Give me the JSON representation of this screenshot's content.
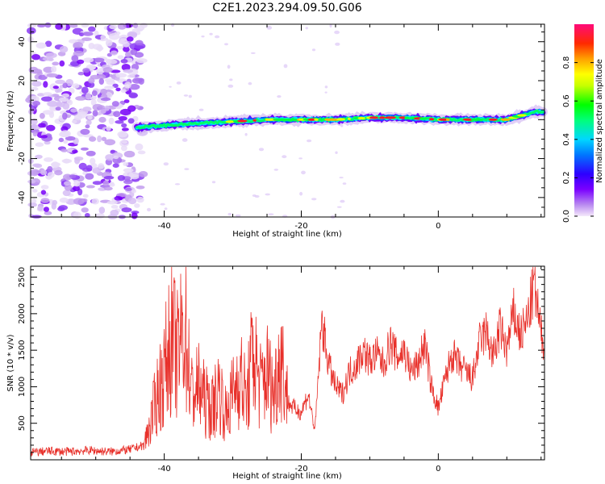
{
  "figure_title": "C2E1.2023.294.09.50.G06",
  "colors": {
    "snr_line": "#e8302a",
    "axes": "#000000",
    "background": "#ffffff"
  },
  "chart_data": [
    {
      "type": "heatmap",
      "xlabel": "Height of straight line (km)",
      "ylabel": "Frequency (Hz)",
      "xlim": [
        -59.5,
        15.5
      ],
      "ylim": [
        -50,
        49
      ],
      "xticks": [
        -40,
        -20,
        0
      ],
      "xtick_labels": [
        "-40",
        "-20",
        "0"
      ],
      "yticks": [
        -40,
        -20,
        0,
        20,
        40
      ],
      "ytick_labels": [
        "-40",
        "-20",
        "0",
        "20",
        "40"
      ],
      "grid": false,
      "colorbar": {
        "label": "Normalized spectral amplitude",
        "range": [
          0,
          1
        ],
        "ticks": [
          0.0,
          0.2,
          0.4,
          0.6,
          0.8
        ],
        "tick_labels": [
          "0.0",
          "0.2",
          "0.4",
          "0.6",
          "0.8"
        ],
        "colormap": "rainbow (violet to magenta-red)"
      },
      "features": {
        "noise_region_x": [
          -59.5,
          -43
        ],
        "signal_band_center_hz": [
          [
            -44,
            -4
          ],
          [
            -40,
            -3
          ],
          [
            -35,
            -2
          ],
          [
            -30,
            -1
          ],
          [
            -25,
            0
          ],
          [
            -20,
            0
          ],
          [
            -15,
            0
          ],
          [
            -10,
            1
          ],
          [
            -5,
            1
          ],
          [
            0,
            0
          ],
          [
            5,
            0
          ],
          [
            10,
            0
          ],
          [
            14,
            4
          ]
        ]
      }
    },
    {
      "type": "line",
      "xlabel": "Height of straight line (km)",
      "ylabel": "SNR (10 * v/v)",
      "xlim": [
        -59.5,
        15.5
      ],
      "ylim": [
        0,
        2650
      ],
      "xticks": [
        -40,
        -20,
        0
      ],
      "xtick_labels": [
        "-40",
        "-20",
        "0"
      ],
      "yticks": [
        500,
        1000,
        1500,
        2000,
        2500
      ],
      "ytick_labels": [
        "500",
        "1000",
        "1500",
        "2000",
        "2500"
      ],
      "grid": false,
      "series": [
        {
          "x": [
            -59.5,
            -57,
            -54,
            -51,
            -48,
            -45,
            -43,
            -42,
            -41,
            -40,
            -39,
            -38,
            -37,
            -36,
            -35,
            -34,
            -33,
            -32,
            -31,
            -30,
            -29,
            -28,
            -27,
            -26,
            -25,
            -24,
            -23,
            -22,
            -21,
            -20,
            -19,
            -18,
            -17,
            -16,
            -15,
            -14,
            -13,
            -12,
            -11,
            -10,
            -9,
            -8,
            -7,
            -6,
            -5,
            -4,
            -3,
            -2,
            -1,
            0,
            1,
            2,
            3,
            4,
            5,
            6,
            7,
            8,
            9,
            10,
            11,
            12,
            13,
            14,
            15,
            15.5
          ],
          "y": [
            100,
            120,
            110,
            130,
            110,
            140,
            200,
            500,
            900,
            1200,
            1700,
            1400,
            1900,
            900,
            1000,
            800,
            700,
            1000,
            600,
            900,
            1200,
            800,
            1500,
            1000,
            1200,
            900,
            1500,
            800,
            700,
            650,
            900,
            400,
            1900,
            1300,
            1000,
            900,
            1200,
            1300,
            1500,
            1350,
            1450,
            1300,
            1600,
            1400,
            1500,
            1200,
            1300,
            1600,
            1000,
            700,
            1100,
            1450,
            1300,
            1200,
            1100,
            1600,
            1750,
            1400,
            1800,
            1500,
            2000,
            1700,
            1900,
            2400,
            1700,
            1600
          ]
        }
      ]
    }
  ]
}
